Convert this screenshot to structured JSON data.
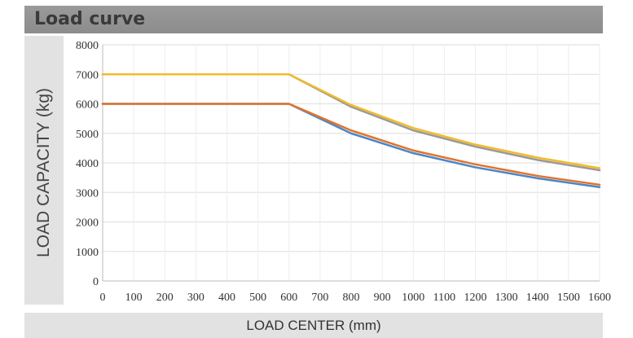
{
  "header": {
    "title": "Load curve"
  },
  "chart_data": {
    "type": "line",
    "title": "Load curve",
    "xlabel": "LOAD CENTER (mm)",
    "ylabel": "LOAD CAPACITY (kg)",
    "x_ticks": [
      "0",
      "100",
      "200",
      "300",
      "400",
      "500",
      "600",
      "700",
      "800",
      "900",
      "1000",
      "1100",
      "1200",
      "1300",
      "1400",
      "1500",
      "1600"
    ],
    "y_ticks": [
      "0",
      "1000",
      "2000",
      "3000",
      "4000",
      "5000",
      "6000",
      "7000",
      "8000"
    ],
    "xlim": [
      0,
      1600
    ],
    "ylim": [
      0,
      8000
    ],
    "grid": true,
    "x": [
      0,
      600,
      800,
      1000,
      1200,
      1400,
      1600
    ],
    "series": [
      {
        "color": "#999999",
        "values": [
          7000,
          7000,
          5900,
          5100,
          4550,
          4100,
          3750
        ]
      },
      {
        "color": "#f2bb2b",
        "values": [
          7000,
          7000,
          5960,
          5180,
          4620,
          4180,
          3820
        ]
      },
      {
        "color": "#4a86c8",
        "values": [
          6000,
          6000,
          5000,
          4330,
          3850,
          3480,
          3180
        ]
      },
      {
        "color": "#e0742c",
        "values": [
          6000,
          6000,
          5100,
          4420,
          3950,
          3560,
          3260
        ]
      }
    ]
  }
}
